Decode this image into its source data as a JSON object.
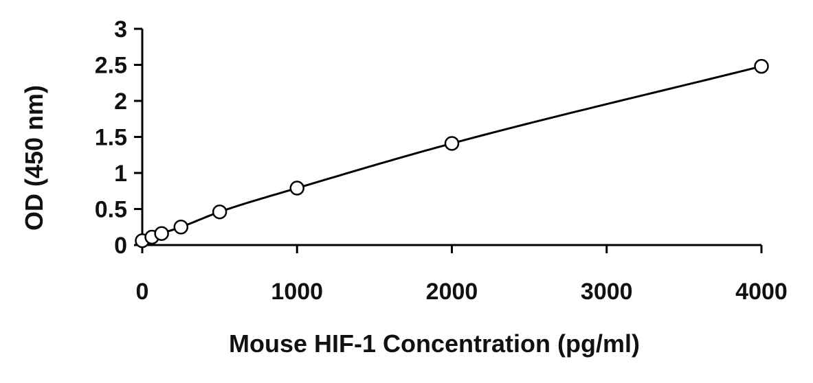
{
  "chart_data": {
    "type": "scatter",
    "title": "",
    "xlabel": "Mouse HIF-1 Concentration (pg/ml)",
    "ylabel": "OD (450 nm)",
    "xlim": [
      0,
      4000
    ],
    "ylim": [
      0,
      3
    ],
    "x_ticks": [
      0,
      1000,
      2000,
      3000,
      4000
    ],
    "y_ticks": [
      0,
      0.5,
      1,
      1.5,
      2,
      2.5,
      3
    ],
    "x_tick_labels": [
      "0",
      "1000",
      "2000",
      "3000",
      "4000"
    ],
    "y_tick_labels": [
      "0",
      "0.5",
      "1",
      "1.5",
      "2",
      "2.5",
      "3"
    ],
    "grid": false,
    "series": [
      {
        "x": [
          0,
          62.5,
          125,
          250,
          500,
          1000,
          2000,
          4000
        ],
        "y": [
          0.06,
          0.11,
          0.16,
          0.25,
          0.46,
          0.79,
          1.41,
          2.48
        ],
        "fit_line": true,
        "marker": "open-circle",
        "color": "#000000"
      }
    ]
  }
}
